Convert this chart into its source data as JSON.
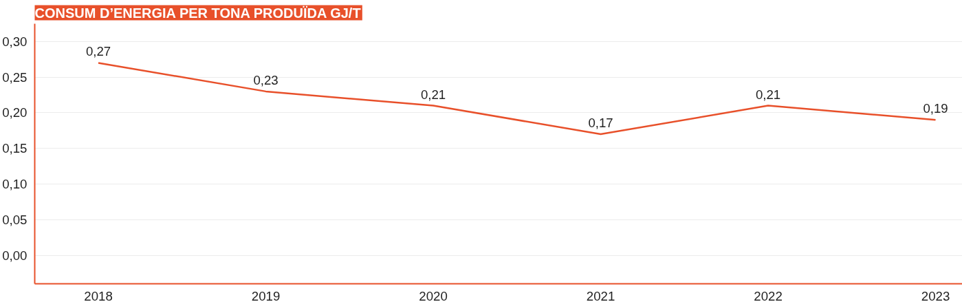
{
  "chart_data": {
    "type": "line",
    "title": "CONSUM D’ENERGIA PER TONA PRODUÏDA GJ/T",
    "categories": [
      "2018",
      "2019",
      "2020",
      "2021",
      "2022",
      "2023"
    ],
    "series": [
      {
        "color": "#e8502a",
        "values": [
          0.27,
          0.23,
          0.21,
          0.17,
          0.21,
          0.19
        ],
        "value_labels": [
          "0,27",
          "0,23",
          "0,21",
          "0,17",
          "0,21",
          "0,19"
        ]
      }
    ],
    "ylim": [
      -0.04,
      0.325
    ],
    "yticks": [
      {
        "value": 0,
        "label": "0,00"
      },
      {
        "value": 0.05,
        "label": "0,05"
      },
      {
        "value": 0.1,
        "label": "0,10"
      },
      {
        "value": 0.15,
        "label": "0,15"
      },
      {
        "value": 0.2,
        "label": "0,20"
      },
      {
        "value": 0.25,
        "label": "0,25"
      },
      {
        "value": 0.3,
        "label": "0,30"
      }
    ],
    "grid": "y",
    "marker": "none",
    "line_style": "solid"
  }
}
